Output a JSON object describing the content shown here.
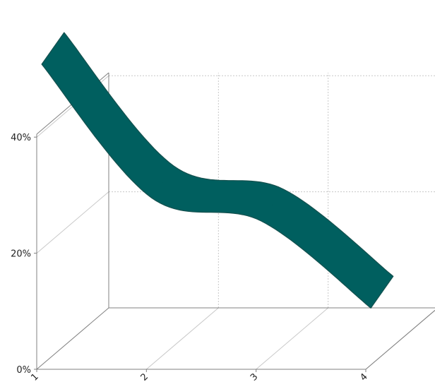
{
  "chart_data": {
    "type": "line",
    "style": "3d-ribbon",
    "title": "",
    "xlabel": "",
    "ylabel": "",
    "categories": [
      "1",
      "2",
      "3",
      "4"
    ],
    "x_tick_labels": [
      "1",
      "2",
      "3",
      "4"
    ],
    "series": [
      {
        "color": "#005f5f",
        "values": [
          0.54,
          0.31,
          0.27,
          0.12
        ]
      }
    ],
    "ylim": [
      0,
      0.5
    ],
    "y_ticks": [
      0,
      0.2,
      0.4
    ],
    "y_tick_labels": [
      "0%",
      "20%",
      "40%"
    ],
    "grid": true,
    "legend": "none"
  },
  "colors": {
    "ribbon_fill": "#005f5f",
    "ribbon_edge": "#14504e",
    "axis_line": "#808080",
    "grid_line": "#c8c8c8"
  }
}
